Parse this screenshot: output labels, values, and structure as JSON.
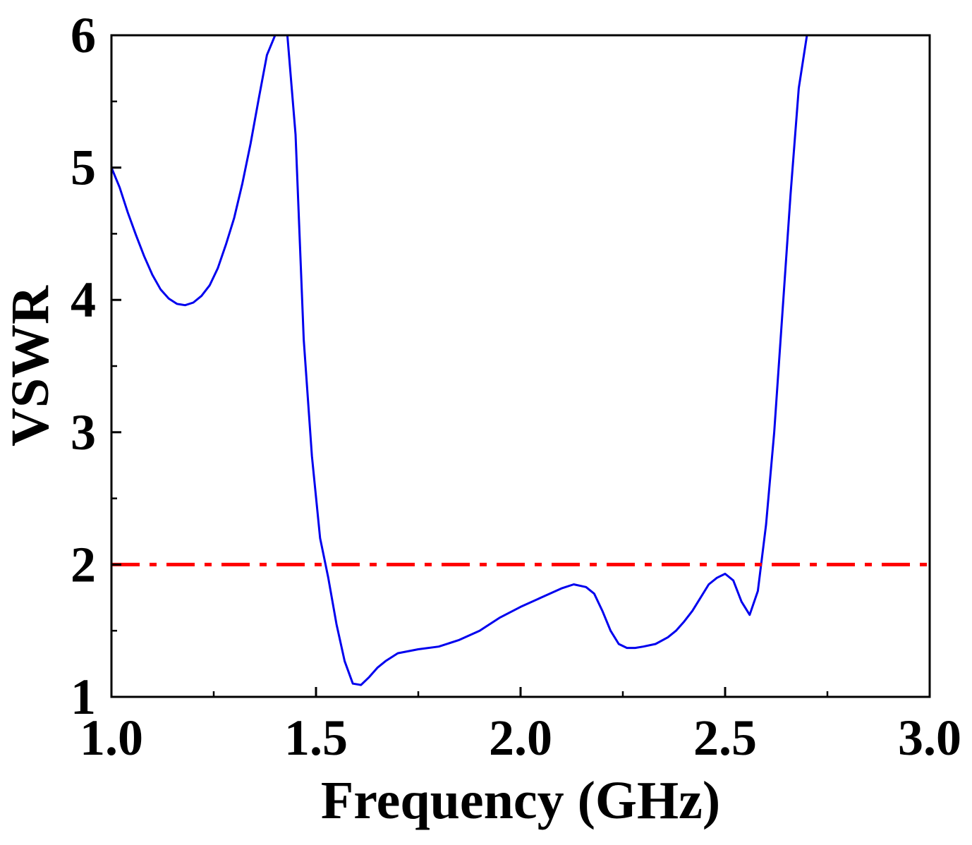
{
  "chart_data": {
    "type": "line",
    "title": "",
    "xlabel": "Frequency (GHz)",
    "ylabel": "VSWR",
    "xlim": [
      1.0,
      3.0
    ],
    "ylim": [
      1,
      6
    ],
    "x_ticks": [
      1.0,
      1.5,
      2.0,
      2.5,
      3.0
    ],
    "x_tick_labels": [
      "1.0",
      "1.5",
      "2.0",
      "2.5",
      "3.0"
    ],
    "y_ticks": [
      1,
      2,
      3,
      4,
      5,
      6
    ],
    "y_tick_labels": [
      "1",
      "2",
      "3",
      "4",
      "5",
      "6"
    ],
    "grid": false,
    "legend": "none",
    "series": [
      {
        "color": "#0000ee",
        "style": "solid",
        "x": [
          1.0,
          1.02,
          1.04,
          1.06,
          1.08,
          1.1,
          1.12,
          1.14,
          1.16,
          1.18,
          1.2,
          1.22,
          1.24,
          1.26,
          1.28,
          1.3,
          1.32,
          1.34,
          1.36,
          1.38,
          1.4,
          1.41,
          1.43,
          1.45,
          1.47,
          1.49,
          1.51,
          1.53,
          1.55,
          1.57,
          1.59,
          1.61,
          1.63,
          1.65,
          1.67,
          1.7,
          1.75,
          1.8,
          1.85,
          1.9,
          1.95,
          2.0,
          2.05,
          2.1,
          2.13,
          2.16,
          2.18,
          2.2,
          2.22,
          2.24,
          2.26,
          2.28,
          2.3,
          2.33,
          2.36,
          2.38,
          2.4,
          2.42,
          2.44,
          2.46,
          2.48,
          2.5,
          2.52,
          2.54,
          2.56,
          2.58,
          2.6,
          2.62,
          2.64,
          2.66,
          2.68,
          2.7
        ],
        "y": [
          5.0,
          4.85,
          4.66,
          4.49,
          4.33,
          4.19,
          4.08,
          4.01,
          3.97,
          3.96,
          3.98,
          4.03,
          4.11,
          4.24,
          4.42,
          4.62,
          4.88,
          5.18,
          5.52,
          5.85,
          6.0,
          6.0,
          6.0,
          5.25,
          3.7,
          2.82,
          2.2,
          1.9,
          1.55,
          1.27,
          1.1,
          1.09,
          1.15,
          1.22,
          1.27,
          1.33,
          1.36,
          1.38,
          1.43,
          1.5,
          1.6,
          1.68,
          1.75,
          1.82,
          1.85,
          1.83,
          1.78,
          1.65,
          1.5,
          1.4,
          1.37,
          1.37,
          1.38,
          1.4,
          1.45,
          1.5,
          1.57,
          1.65,
          1.75,
          1.85,
          1.9,
          1.93,
          1.88,
          1.72,
          1.62,
          1.8,
          2.3,
          3.0,
          3.9,
          4.8,
          5.6,
          6.0
        ]
      },
      {
        "color": "#ff0000",
        "style": "dashdot",
        "x": [
          1.0,
          3.0
        ],
        "y": [
          2,
          2
        ]
      }
    ]
  }
}
